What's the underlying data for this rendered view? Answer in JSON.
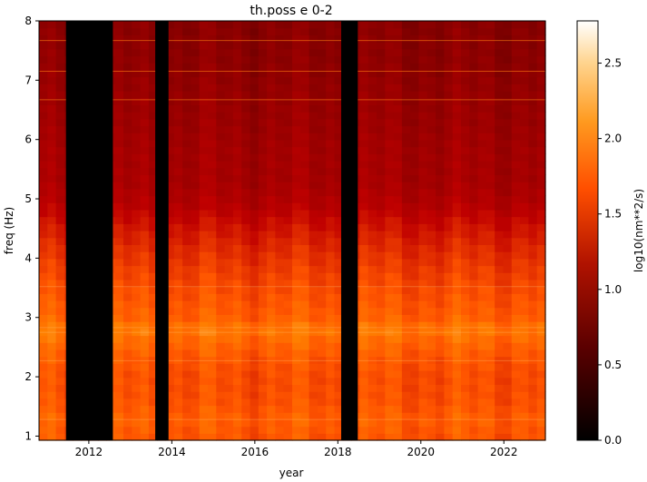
{
  "chart_data": {
    "type": "heatmap",
    "title": "th.poss e 0-2",
    "xlabel": "year",
    "ylabel": "freq (Hz)",
    "xlim": [
      2010.8,
      2023.0
    ],
    "ylim": [
      0.93,
      8.0
    ],
    "x_ticks": [
      2012,
      2014,
      2016,
      2018,
      2020,
      2022
    ],
    "x_tick_labels": [
      "2012",
      "2014",
      "2016",
      "2018",
      "2020",
      "2022"
    ],
    "y_ticks": [
      1,
      2,
      3,
      4,
      5,
      6,
      7,
      8
    ],
    "y_tick_labels": [
      "1",
      "2",
      "3",
      "4",
      "5",
      "6",
      "7",
      "8"
    ],
    "colorbar": {
      "label": "log10(nm**2/s)",
      "colormap": "gist_heat",
      "range": [
        0.0,
        2.78
      ],
      "ticks": [
        0.0,
        0.5,
        1.0,
        1.5,
        2.0,
        2.5
      ],
      "tick_labels": [
        "0.0",
        "0.5",
        "1.0",
        "1.5",
        "2.0",
        "2.5"
      ]
    },
    "data_gaps_years": [
      [
        2011.45,
        2012.58
      ],
      [
        2013.6,
        2013.92
      ],
      [
        2018.08,
        2018.48
      ]
    ],
    "freq_profile": {
      "freq_hz": [
        1.0,
        1.3,
        1.6,
        2.0,
        2.3,
        2.6,
        2.8,
        3.0,
        3.4,
        3.8,
        4.2,
        4.6,
        4.9,
        5.3,
        5.8,
        6.3,
        6.8,
        7.3,
        7.7,
        8.0
      ],
      "log10_power": [
        1.85,
        1.9,
        1.82,
        1.8,
        1.85,
        1.95,
        2.05,
        1.9,
        1.82,
        1.72,
        1.6,
        1.45,
        1.3,
        1.2,
        1.18,
        1.12,
        1.08,
        1.02,
        1.0,
        0.98
      ]
    },
    "bright_lines_hz": [
      2.75,
      2.83,
      2.27,
      1.28,
      3.52,
      7.67,
      7.15,
      6.67
    ]
  }
}
